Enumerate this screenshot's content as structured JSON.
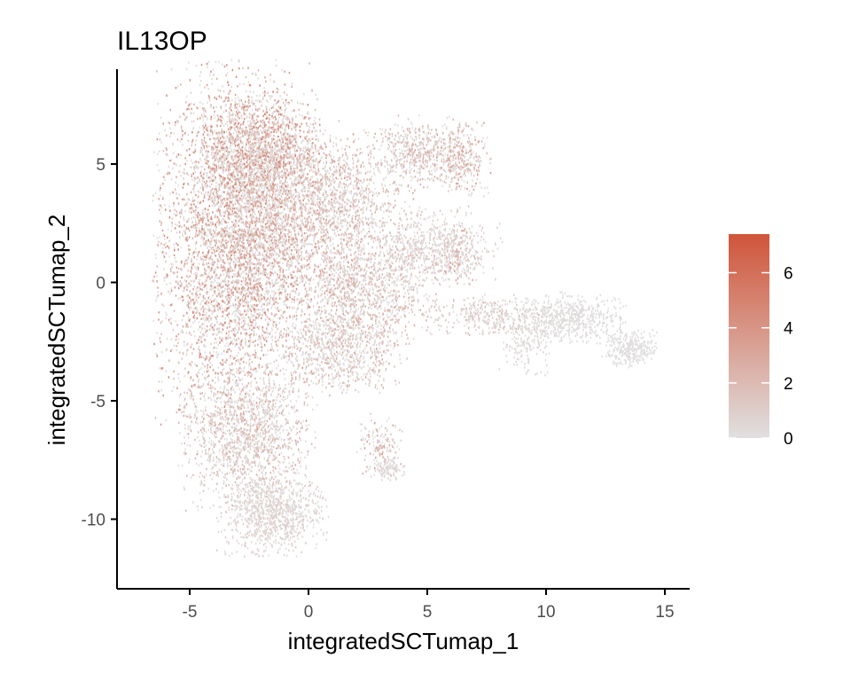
{
  "chart_data": {
    "type": "scatter",
    "title": "IL13OP",
    "xlabel": "integratedSCTumap_1",
    "ylabel": "integratedSCTumap_2",
    "xlim": [
      -8,
      16
    ],
    "ylim": [
      -13,
      9
    ],
    "x_ticks": [
      -5,
      0,
      5,
      10,
      15
    ],
    "x_tick_labels": [
      "-5",
      "0",
      "5",
      "10",
      "15"
    ],
    "y_ticks": [
      -10,
      -5,
      0,
      5
    ],
    "y_tick_labels": [
      "-10",
      "-5",
      "0",
      "5"
    ],
    "grid": false,
    "point_size": "small",
    "color_scale": {
      "low_color": "#e0e0e0",
      "high_color": "#d0553a",
      "min": 0,
      "max": 7.4,
      "ticks": [
        0,
        2,
        4,
        6
      ],
      "tick_labels": [
        "0",
        "2",
        "4",
        "6"
      ],
      "legend_position": "right"
    },
    "clusters": [
      {
        "cx": -3.2,
        "cy": 1.5,
        "sx": 1.7,
        "sy": 4.0,
        "n": 4200,
        "mean_expr": 2.2
      },
      {
        "cx": -2.0,
        "cy": 5.5,
        "sx": 1.3,
        "sy": 1.3,
        "n": 1300,
        "mean_expr": 2.4
      },
      {
        "cx": -1.0,
        "cy": 2.5,
        "sx": 1.6,
        "sy": 2.2,
        "n": 1500,
        "mean_expr": 1.9
      },
      {
        "cx": 1.5,
        "cy": 3.5,
        "sx": 1.5,
        "sy": 1.5,
        "n": 1000,
        "mean_expr": 1.4
      },
      {
        "cx": 2.5,
        "cy": -0.3,
        "sx": 1.5,
        "sy": 1.2,
        "n": 1000,
        "mean_expr": 1.4
      },
      {
        "cx": 1.3,
        "cy": -2.8,
        "sx": 1.5,
        "sy": 1.0,
        "n": 900,
        "mean_expr": 1.3
      },
      {
        "cx": 4.7,
        "cy": 5.5,
        "sx": 1.1,
        "sy": 0.8,
        "n": 500,
        "mean_expr": 1.3
      },
      {
        "cx": 6.5,
        "cy": 5.2,
        "sx": 0.6,
        "sy": 0.8,
        "n": 300,
        "mean_expr": 1.6
      },
      {
        "cx": 5.0,
        "cy": 1.5,
        "sx": 1.6,
        "sy": 0.9,
        "n": 600,
        "mean_expr": 0.8
      },
      {
        "cx": 6.2,
        "cy": 1.1,
        "sx": 0.5,
        "sy": 0.6,
        "n": 200,
        "mean_expr": 1.5
      },
      {
        "cx": -2.6,
        "cy": -6.5,
        "sx": 1.5,
        "sy": 1.6,
        "n": 1400,
        "mean_expr": 1.2
      },
      {
        "cx": -1.5,
        "cy": -9.8,
        "sx": 1.2,
        "sy": 0.9,
        "n": 900,
        "mean_expr": 0.6
      },
      {
        "cx": 3.0,
        "cy": -6.8,
        "sx": 0.5,
        "sy": 0.7,
        "n": 150,
        "mean_expr": 1.6
      },
      {
        "cx": 3.3,
        "cy": -7.9,
        "sx": 0.4,
        "sy": 0.25,
        "n": 100,
        "mean_expr": 0.3
      },
      {
        "cx": 7.5,
        "cy": -1.4,
        "sx": 1.4,
        "sy": 0.45,
        "n": 350,
        "mean_expr": 0.9
      },
      {
        "cx": 11.0,
        "cy": -1.5,
        "sx": 1.2,
        "sy": 0.55,
        "n": 600,
        "mean_expr": 0.1
      },
      {
        "cx": 13.5,
        "cy": -2.8,
        "sx": 0.6,
        "sy": 0.4,
        "n": 300,
        "mean_expr": 0.05
      },
      {
        "cx": 9.2,
        "cy": -2.6,
        "sx": 0.6,
        "sy": 0.7,
        "n": 150,
        "mean_expr": 0.3
      }
    ]
  }
}
